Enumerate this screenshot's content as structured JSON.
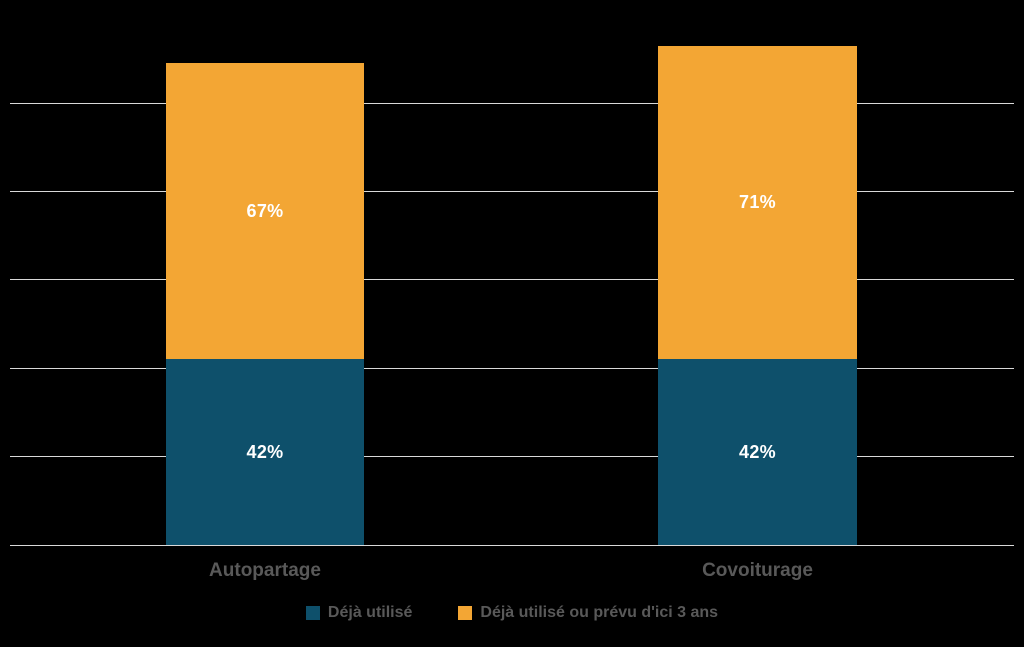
{
  "chart_data": {
    "type": "bar",
    "stacked": true,
    "title": "",
    "categories": [
      "Autopartage",
      "Covoiturage"
    ],
    "series": [
      {
        "name": "Déjà utilisé",
        "color": "#0E506B",
        "values": [
          42,
          42
        ]
      },
      {
        "name": "Déjà utilisé ou prévu d'ici 3 ans",
        "color": "#F3A634",
        "values": [
          67,
          71
        ]
      }
    ],
    "value_suffix": "%",
    "xlabel": "",
    "ylabel": "",
    "ylim": [
      0,
      100
    ],
    "gridlines": [
      0,
      20,
      40,
      60,
      80,
      100
    ],
    "grid": true,
    "legend_position": "bottom",
    "colors": {
      "background": "#000000",
      "gridline": "#D9D9D9",
      "axis_label": "#595959",
      "bar_label": "#FFFFFF"
    }
  }
}
